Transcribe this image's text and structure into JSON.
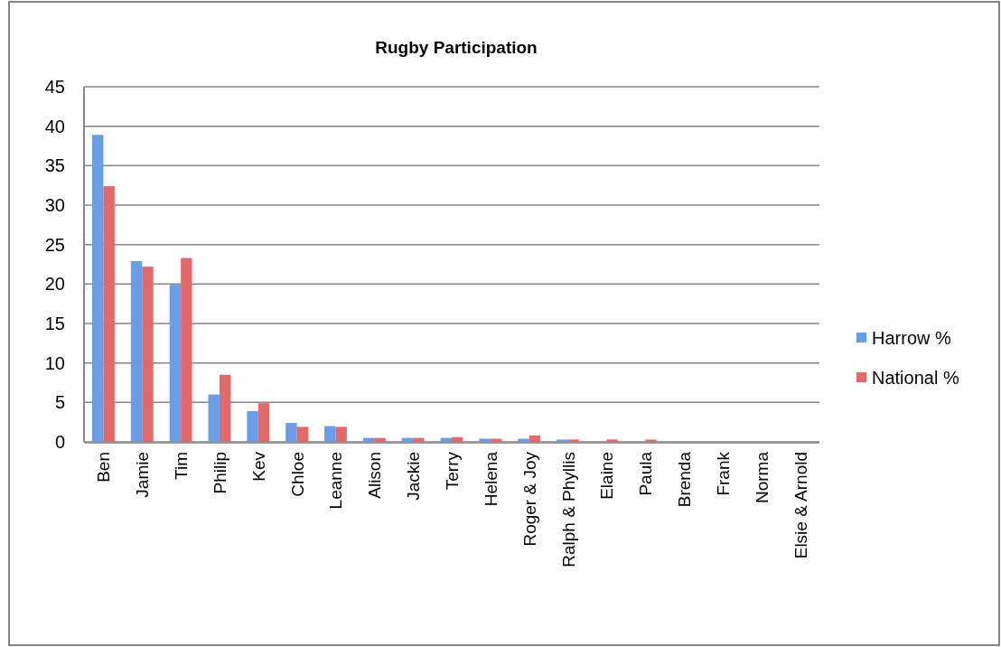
{
  "chart_data": {
    "type": "bar",
    "title": "Rugby Participation",
    "categories": [
      "Ben",
      "Jamie",
      "Tim",
      "Philip",
      "Kev",
      "Chloe",
      "Leanne",
      "Alison",
      "Jackie",
      "Terry",
      "Helena",
      "Roger & Joy",
      "Ralph & Phyllis",
      "Elaine",
      "Paula",
      "Brenda",
      "Frank",
      "Norma",
      "Elsie & Arnold"
    ],
    "series": [
      {
        "name": "Harrow %",
        "color": "#6a9de8",
        "values": [
          38.9,
          22.9,
          19.9,
          6.0,
          3.9,
          2.4,
          2.0,
          0.5,
          0.5,
          0.5,
          0.4,
          0.4,
          0.3,
          0,
          0,
          0,
          0,
          0,
          0
        ]
      },
      {
        "name": "National %",
        "color": "#e46a6a",
        "values": [
          32.4,
          22.2,
          23.3,
          8.5,
          4.9,
          1.9,
          1.9,
          0.5,
          0.5,
          0.6,
          0.4,
          0.8,
          0.3,
          0.3,
          0.3,
          0,
          0,
          0,
          0
        ]
      }
    ],
    "ylim": [
      0,
      45
    ],
    "yticks": [
      0,
      5,
      10,
      15,
      20,
      25,
      30,
      35,
      40,
      45
    ],
    "grid": "y",
    "legend": "right"
  }
}
